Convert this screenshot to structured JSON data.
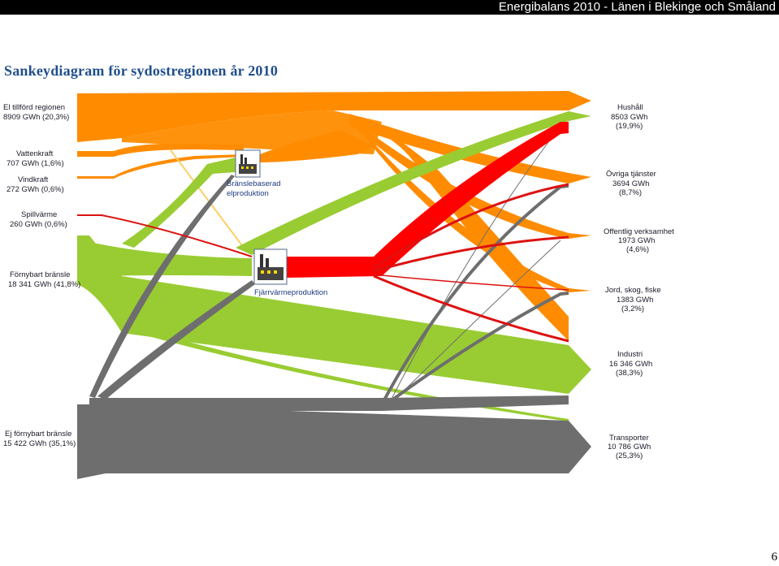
{
  "header": {
    "title": "Energibalans 2010 - Länen i Blekinge och Småland"
  },
  "page": {
    "title": "Sankeydiagram för sydostregionen år 2010",
    "number": "6"
  },
  "colors": {
    "electricity": "#ff8c00",
    "renewable": "#99cc33",
    "nonrenewable": "#6e6e6e",
    "district_heating": "#ff0000",
    "process_label": "#1f3a80"
  },
  "sources": [
    {
      "id": "el",
      "name": "El tillförd regionen",
      "value": "8909 GWh (20,3%)"
    },
    {
      "id": "vatten",
      "name": "Vattenkraft",
      "value": "707 GWh (1,6%)"
    },
    {
      "id": "vind",
      "name": "Vindkraft",
      "value": "272 GWh (0,6%)"
    },
    {
      "id": "spill",
      "name": "Spillvärme",
      "value": "260 GWh (0,6%)"
    },
    {
      "id": "fornybar",
      "name": "Förnybart bränsle",
      "value": "18 341 GWh (41,8%)"
    },
    {
      "id": "ejfornybar",
      "name": "Ej förnybart bränsle",
      "value": "15 422 GWh (35,1%)"
    }
  ],
  "processes": [
    {
      "id": "bransle",
      "line1": "Bränslebaserad",
      "line2": "elproduktion",
      "icon": "power-plant-icon"
    },
    {
      "id": "fjarr",
      "line1": "Fjärrvärmeproduktion",
      "line2": "",
      "icon": "heating-plant-icon"
    }
  ],
  "sinks": [
    {
      "id": "hushall",
      "name": "Hushåll",
      "value": "8503 GWh",
      "pct": "(19,9%)"
    },
    {
      "id": "ovriga",
      "name": "Övriga tjänster",
      "value": "3694 GWh",
      "pct": "(8,7%)"
    },
    {
      "id": "offentlig",
      "name": "Offentlig verksamhet",
      "value": "1973 GWh",
      "pct": "(4,6%)"
    },
    {
      "id": "jord",
      "name": "Jord, skog, fiske",
      "value": "1383 GWh",
      "pct": "(3,2%)"
    },
    {
      "id": "industri",
      "name": "Industri",
      "value": "16 346 GWh",
      "pct": "(38,3%)"
    },
    {
      "id": "transport",
      "name": "Transporter",
      "value": "10 786 GWh",
      "pct": "(25,3%)"
    }
  ]
}
